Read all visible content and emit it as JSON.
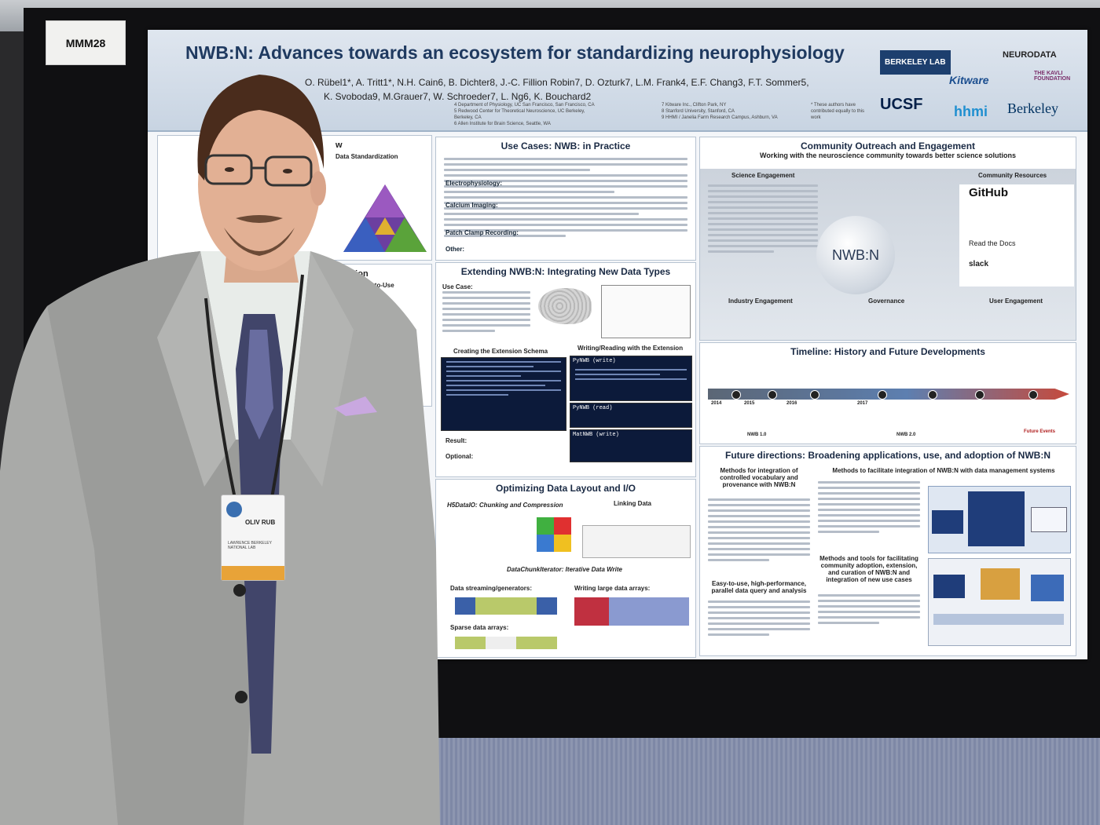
{
  "booth": {
    "label": "MMM28"
  },
  "poster": {
    "title": "NWB:N: Advances towards an ecosystem for standardizing neurophysiology",
    "authors_line1": "O. Rübel1*, A. Tritt1*, N.H. Cain6, B. Dichter8, J.-C. Fillion Robin7, D. Ozturk7, L.M. Frank4, E.F. Chang3, F.T. Sommer5,",
    "authors_line2": "K. Svoboda9, M.Grauer7, W. Schroeder7, L. Ng6, K. Bouchard2",
    "affiliations": [
      "4 Department of Physiology, UC San Francisco, San Francisco, CA",
      "5 Redwood Center for Theoretical Neuroscience, UC Berkeley, Berkeley, CA",
      "6 Allen Institute for Brain Science, Seattle, WA",
      "7 Kitware Inc., Clifton Park, NY",
      "8 Stanford University, Stanford, CA",
      "9 HHMI / Janelia Farm Research Campus, Ashburn, VA",
      "* These authors have contributed equally to this work"
    ],
    "logos": [
      "BERKELEY LAB",
      "Kitware",
      "NEURODATA",
      "THE KAVLI FOUNDATION",
      "UCSF",
      "hhmi",
      "Berkeley"
    ],
    "left_col": {
      "overview_title": "w",
      "overview_sub": "Data Standardization",
      "org_title": "anization",
      "org_sub": "and Easy-to-Use"
    },
    "use_cases": {
      "title": "Use Cases: NWB: in Practice",
      "bullets": [
        "Electrophysiology:",
        "Calcium Imaging:",
        "Patch Clamp Recording:",
        "Other:"
      ]
    },
    "extending": {
      "title": "Extending NWB:N: Integrating New Data Types",
      "use_case_label": "Use Case:",
      "schema_label": "Creating the Extension Schema",
      "rw_label": "Writing/Reading with the Extension",
      "code_labels": [
        "PyNWB (write)",
        "PyNWB (read)",
        "MatNWB (write)"
      ],
      "result_label": "Result:",
      "optional_label": "Optional:"
    },
    "optimizing": {
      "title": "Optimizing Data Layout and I/O",
      "h5_label": "H5DataIO: Chunking and Compression",
      "linking_label": "Linking Data",
      "iter_label": "DataChunkIterator: Iterative Data Write",
      "stream_label": "Data streaming/generators:",
      "large_label": "Writing large data arrays:",
      "sparse_label": "Sparse data arrays:"
    },
    "community": {
      "title": "Community Outreach and Engagement",
      "subtitle": "Working with the neuroscience community towards better science solutions",
      "science": "Science Engagement",
      "resources": "Community Resources",
      "industry": "Industry Engagement",
      "governance": "Governance",
      "user": "User Engagement",
      "center": "NWB:N",
      "github": "GitHub",
      "readthedocs": "Read the Docs",
      "slack": "slack"
    },
    "timeline": {
      "title": "Timeline: History and Future Developments",
      "years": [
        "2014",
        "2015",
        "2016",
        "2017"
      ],
      "nwb1": "NWB 1.0",
      "nwb2": "NWB 2.0",
      "future": "Future Events"
    },
    "future": {
      "title": "Future directions: Broadening applications, use, and adoption of NWB:N",
      "vocab": "Methods for integration of controlled vocabulary and provenance with NWB:N",
      "mgmt": "Methods to facilitate integration of NWB:N with data management systems",
      "query": "Easy-to-use, high-performance, parallel data query and analysis",
      "tools": "Methods and tools for facilitating community adoption, extension, and curation of NWB:N and integration of new use cases"
    }
  },
  "badge": {
    "name": "OLIV RUB",
    "org": "LAWRENCE BERKELEY NATIONAL LAB"
  }
}
